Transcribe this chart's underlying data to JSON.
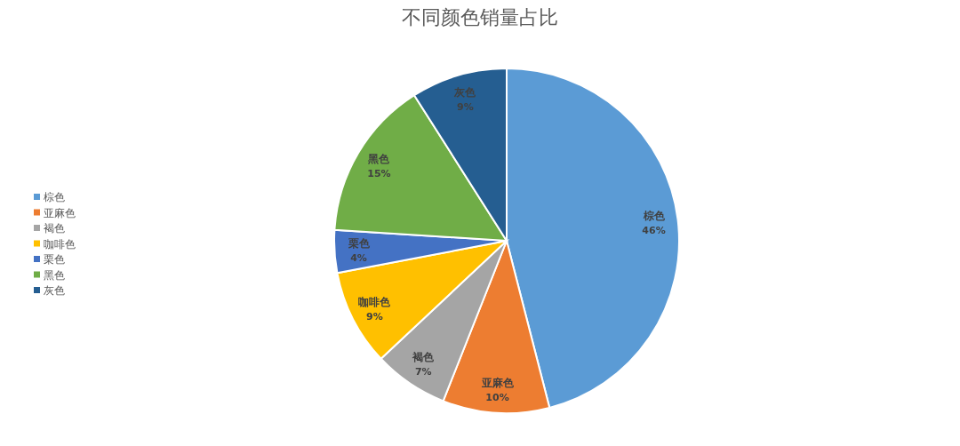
{
  "chart_data": {
    "type": "pie",
    "title": "不同颜色销量占比",
    "categories": [
      "棕色",
      "亚麻色",
      "褐色",
      "咖啡色",
      "栗色",
      "黑色",
      "灰色"
    ],
    "values": [
      46,
      10,
      7,
      9,
      4,
      15,
      9
    ],
    "colors": [
      "#5b9bd5",
      "#ed7d31",
      "#a5a5a5",
      "#ffc000",
      "#4472c4",
      "#70ad47",
      "#255e91"
    ],
    "value_labels": [
      "46%",
      "10%",
      "7%",
      "9%",
      "4%",
      "15%",
      "9%"
    ],
    "legend": "left"
  }
}
